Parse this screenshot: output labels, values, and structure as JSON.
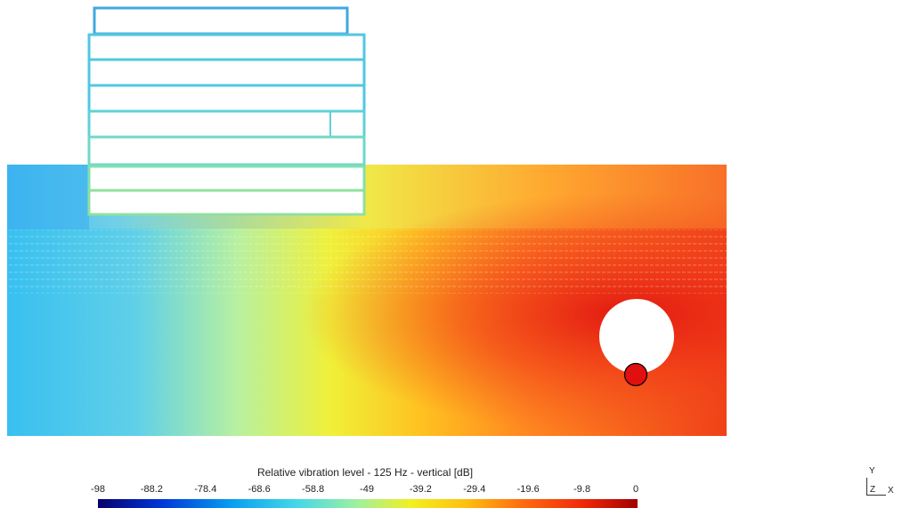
{
  "colorbar": {
    "title": "Relative vibration level - 125 Hz - vertical [dB]",
    "ticks": [
      "-98",
      "-88.2",
      "-78.4",
      "-68.6",
      "-58.8",
      "-49",
      "-39.2",
      "-29.4",
      "-19.6",
      "-9.8",
      "0"
    ],
    "colors": [
      "#08006e",
      "#0038d8",
      "#0aa0f0",
      "#46d8e8",
      "#9ef0a0",
      "#f2f020",
      "#ffc010",
      "#ff7010",
      "#f02808",
      "#a00000"
    ]
  },
  "marker": {
    "color": "#e01010"
  },
  "axes": {
    "y": "Y",
    "z": "Z",
    "x": "X"
  }
}
